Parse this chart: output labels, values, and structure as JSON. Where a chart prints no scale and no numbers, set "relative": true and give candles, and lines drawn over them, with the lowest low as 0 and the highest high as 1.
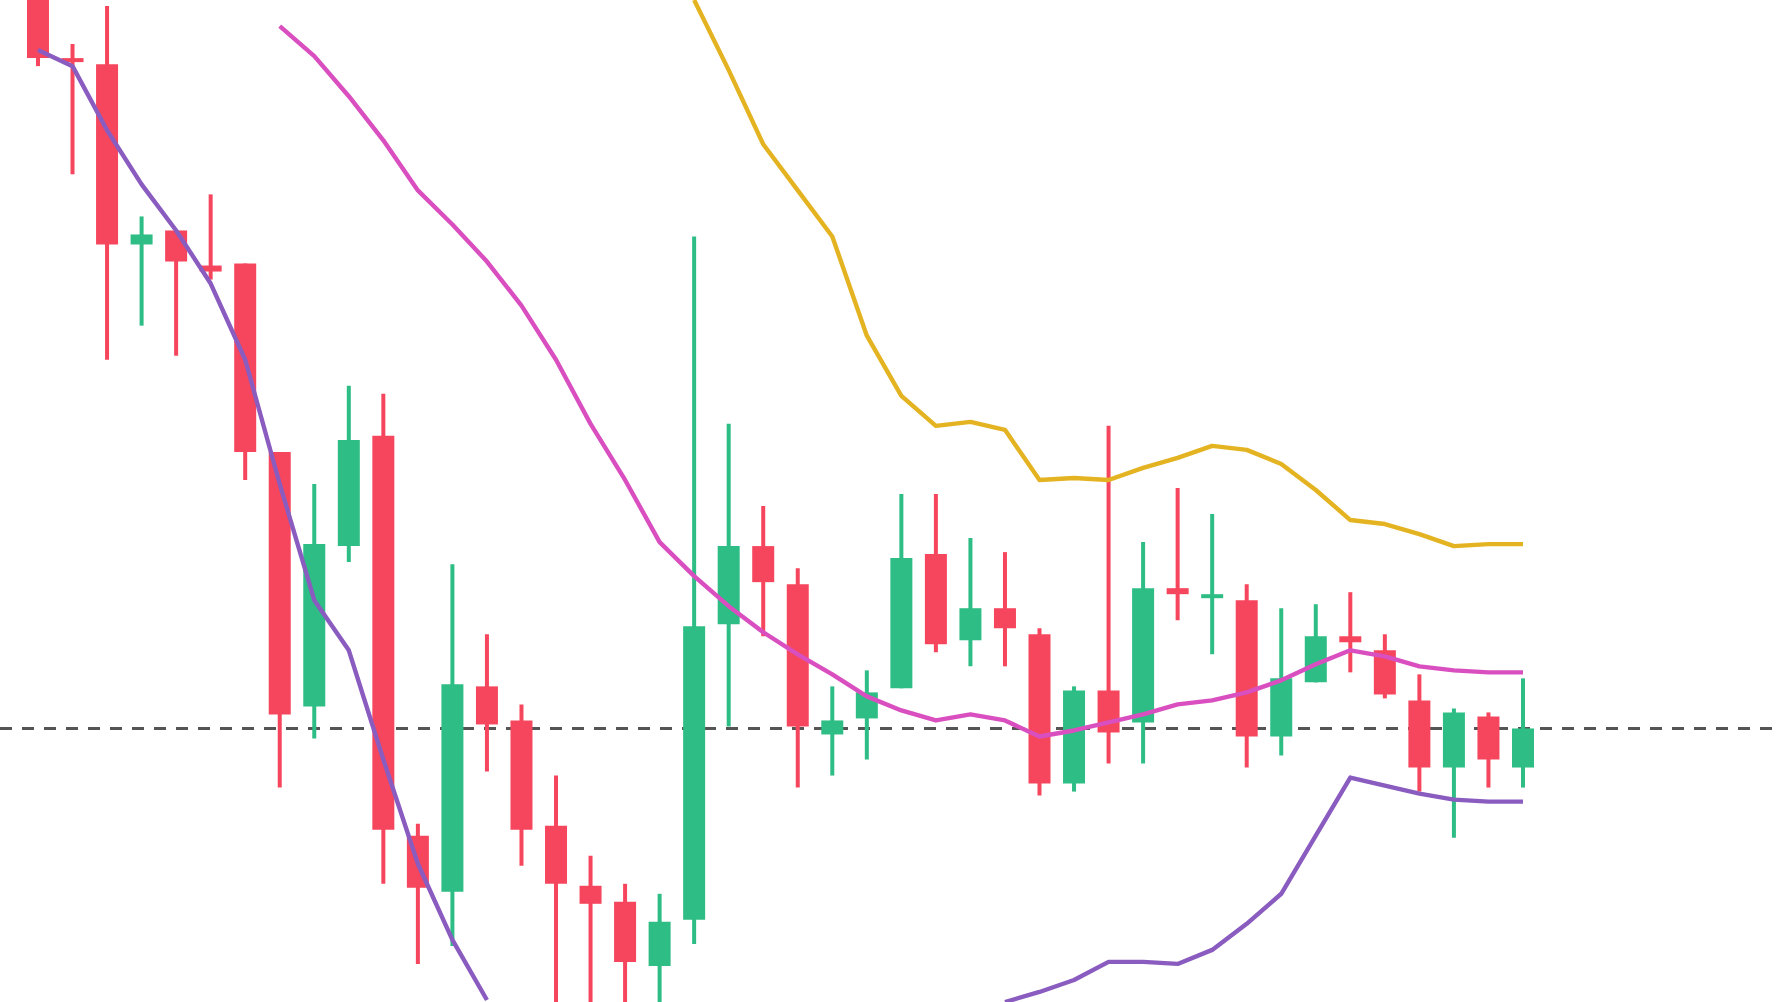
{
  "chart_data": {
    "type": "candlestick",
    "relative": true,
    "legend": false,
    "categories": [
      null,
      null,
      null,
      null,
      null,
      null,
      null,
      null,
      null,
      null,
      null,
      null,
      null,
      null,
      null,
      null,
      null,
      null,
      null,
      null,
      null,
      null,
      null,
      null,
      null,
      null,
      null,
      null,
      null,
      null,
      null,
      null,
      null,
      null,
      null,
      null,
      null,
      null,
      null,
      null,
      null,
      null,
      null,
      null
    ],
    "ohlc": [
      [
        1,
        1,
        0.934,
        0.942
      ],
      [
        0.942,
        0.956,
        0.826,
        0.938
      ],
      [
        0.936,
        0.994,
        0.641,
        0.756
      ],
      [
        0.756,
        0.784,
        0.675,
        0.766
      ],
      [
        0.77,
        0.77,
        0.645,
        0.739
      ],
      [
        0.735,
        0.806,
        0.721,
        0.729
      ],
      [
        0.737,
        0.737,
        0.521,
        0.549
      ],
      [
        0.549,
        0.549,
        0.214,
        0.287
      ],
      [
        0.295,
        0.517,
        0.263,
        0.457
      ],
      [
        0.455,
        0.615,
        0.439,
        0.561
      ],
      [
        0.565,
        0.607,
        0.118,
        0.172
      ],
      [
        0.166,
        0.178,
        0.038,
        0.114
      ],
      [
        0.11,
        0.437,
        0.056,
        0.317
      ],
      [
        0.315,
        0.367,
        0.23,
        0.277
      ],
      [
        0.281,
        0.297,
        0.136,
        0.172
      ],
      [
        0.176,
        0.226,
        0,
        0.118
      ],
      [
        0.116,
        0.146,
        0,
        0.098
      ],
      [
        0.1,
        0.118,
        0,
        0.04
      ],
      [
        0.036,
        0.108,
        0,
        0.08
      ],
      [
        0.082,
        0.764,
        0.058,
        0.375
      ],
      [
        0.377,
        0.577,
        0.275,
        0.455
      ],
      [
        0.455,
        0.495,
        0.365,
        0.419
      ],
      [
        0.417,
        0.433,
        0.214,
        0.275
      ],
      [
        0.267,
        0.315,
        0.226,
        0.281
      ],
      [
        0.283,
        0.331,
        0.242,
        0.309
      ],
      [
        0.313,
        0.507,
        0.313,
        0.443
      ],
      [
        0.447,
        0.507,
        0.349,
        0.357
      ],
      [
        0.361,
        0.463,
        0.335,
        0.393
      ],
      [
        0.393,
        0.449,
        0.335,
        0.373
      ],
      [
        0.367,
        0.373,
        0.206,
        0.218
      ],
      [
        0.218,
        0.315,
        0.21,
        0.311
      ],
      [
        0.311,
        0.575,
        0.238,
        0.269
      ],
      [
        0.279,
        0.459,
        0.238,
        0.413
      ],
      [
        0.413,
        0.513,
        0.381,
        0.407
      ],
      [
        0.403,
        0.487,
        0.347,
        0.407
      ],
      [
        0.401,
        0.417,
        0.234,
        0.265
      ],
      [
        0.265,
        0.393,
        0.246,
        0.323
      ],
      [
        0.319,
        0.397,
        0.319,
        0.365
      ],
      [
        0.365,
        0.409,
        0.329,
        0.359
      ],
      [
        0.351,
        0.367,
        0.303,
        0.307
      ],
      [
        0.301,
        0.327,
        0.21,
        0.234
      ],
      [
        0.234,
        0.293,
        0.164,
        0.289
      ],
      [
        0.285,
        0.289,
        0.214,
        0.242
      ],
      [
        0.234,
        0.323,
        0.214,
        0.273
      ]
    ],
    "colors": [
      "#f6465d",
      "#f6465d",
      "#f6465d",
      "#2ebd85",
      "#f6465d",
      "#f6465d",
      "#f6465d",
      "#f6465d",
      "#2ebd85",
      "#2ebd85",
      "#f6465d",
      "#f6465d",
      "#2ebd85",
      "#f6465d",
      "#f6465d",
      "#f6465d",
      "#f6465d",
      "#f6465d",
      "#2ebd85",
      "#2ebd85",
      "#2ebd85",
      "#f6465d",
      "#f6465d",
      "#2ebd85",
      "#2ebd85",
      "#2ebd85",
      "#f6465d",
      "#2ebd85",
      "#f6465d",
      "#f6465d",
      "#2ebd85",
      "#f6465d",
      "#2ebd85",
      "#f6465d",
      "#2ebd85",
      "#f6465d",
      "#2ebd85",
      "#2ebd85",
      "#f6465d",
      "#f6465d",
      "#f6465d",
      "#2ebd85",
      "#f6465d",
      "#2ebd85"
    ],
    "series": [
      {
        "type": "line",
        "color": "#e4b321",
        "values": [
          null,
          null,
          null,
          null,
          null,
          null,
          null,
          null,
          null,
          null,
          null,
          null,
          null,
          null,
          null,
          null,
          null,
          null,
          null,
          1.0,
          0.93,
          0.856,
          0.81,
          0.764,
          0.665,
          0.605,
          0.575,
          0.579,
          0.571,
          0.521,
          0.523,
          0.521,
          0.533,
          0.543,
          0.555,
          0.551,
          0.537,
          0.511,
          0.481,
          0.477,
          0.467,
          0.455,
          0.457,
          0.457
        ]
      },
      {
        "type": "line",
        "color": "#d94fc0",
        "values": [
          null,
          null,
          null,
          null,
          null,
          null,
          null,
          0.974,
          0.944,
          0.904,
          0.86,
          0.81,
          0.776,
          0.739,
          0.695,
          0.641,
          0.577,
          0.521,
          0.459,
          0.425,
          0.395,
          0.369,
          0.347,
          0.327,
          0.305,
          0.291,
          0.281,
          0.287,
          0.281,
          0.265,
          0.271,
          0.279,
          0.287,
          0.297,
          0.301,
          0.309,
          0.321,
          0.337,
          0.351,
          0.345,
          0.335,
          0.331,
          0.329,
          0.329
        ]
      },
      {
        "type": "line",
        "color": "#8a5cc0",
        "values": [
          0.95,
          0.934,
          0.87,
          0.816,
          0.77,
          0.717,
          0.641,
          0.517,
          0.401,
          0.351,
          0.242,
          0.138,
          0.062,
          0.002,
          null,
          null,
          null,
          null,
          null,
          null,
          null,
          null,
          null,
          null,
          null,
          null,
          null,
          null,
          0,
          0.01,
          0.022,
          0.04,
          0.04,
          0.038,
          0.052,
          0.078,
          0.108,
          0.166,
          0.224,
          0.216,
          0.208,
          0.202,
          0.2,
          0.2
        ]
      }
    ],
    "ref_lines": [
      {
        "axis": "y",
        "value": 0.273,
        "color": "#555555",
        "line_style": "dashed"
      }
    ]
  }
}
